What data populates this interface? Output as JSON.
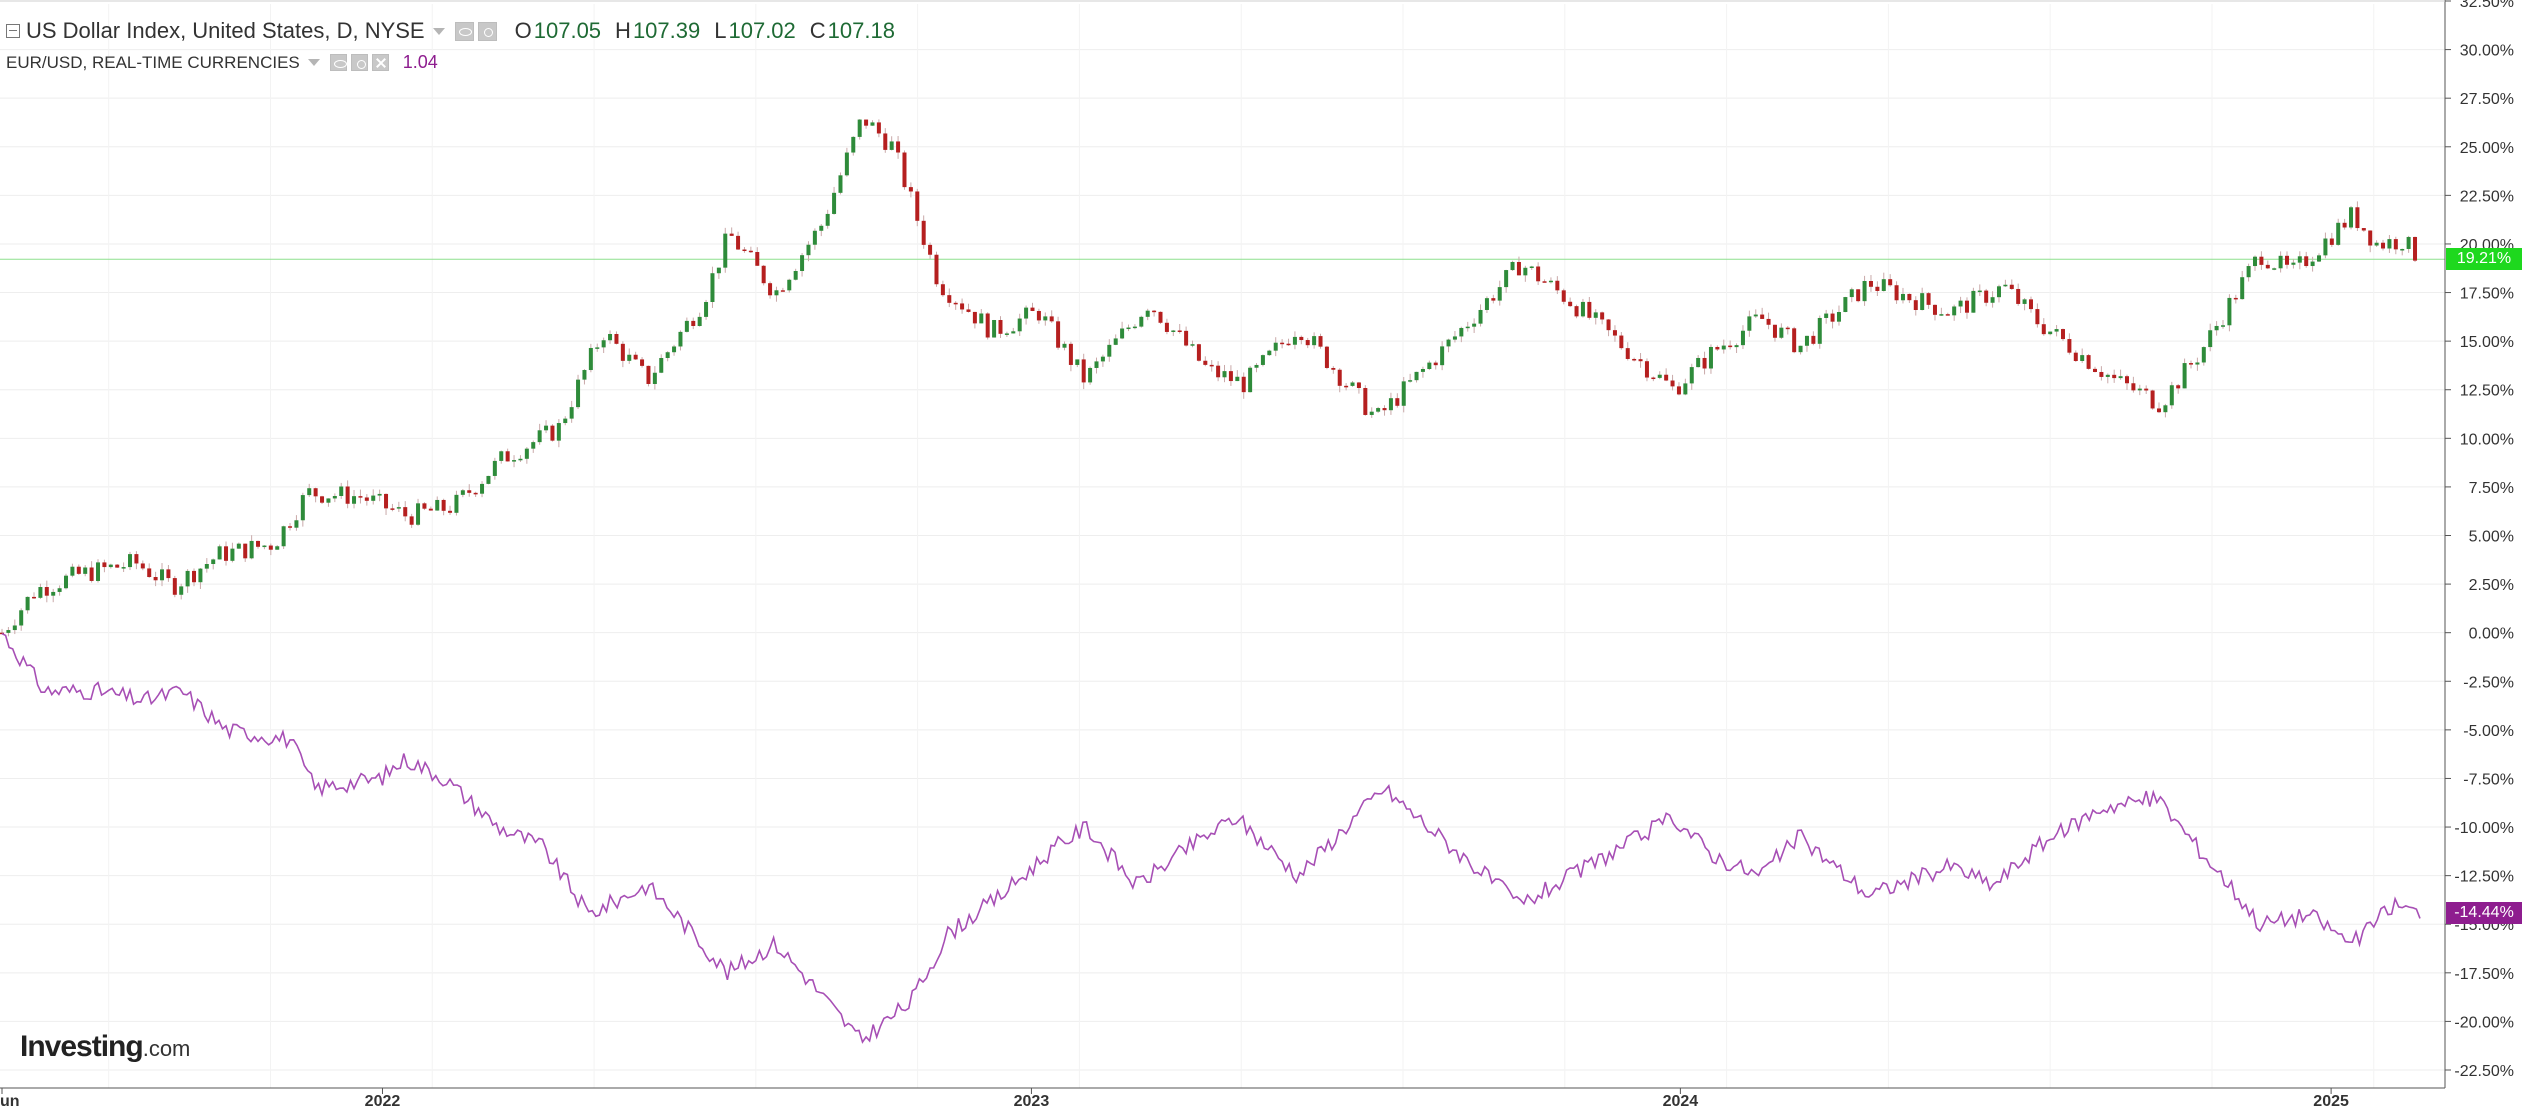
{
  "legend": {
    "main": {
      "title": "US Dollar Index, United States, D, NYSE",
      "open_label": "O",
      "open": "107.05",
      "high_label": "H",
      "high": "107.39",
      "low_label": "L",
      "low": "107.02",
      "close_label": "C",
      "close": "107.18"
    },
    "compare": {
      "title": "EUR/USD, REAL-TIME CURRENCIES",
      "value": "1.04"
    }
  },
  "logo": {
    "main": "Investing",
    "suffix": ".com"
  },
  "colors": {
    "up": "#2e8b3a",
    "down": "#b51f1f",
    "compare_line": "#a74fb5",
    "compare_tag": "#8e1d8f",
    "current_tag": "#1ed81e",
    "current_line": "#8ee08e",
    "grid": "#eeeeee",
    "axis_text": "#333333"
  },
  "chart_data": {
    "type": "line",
    "mode": "percent-change comparison",
    "y_axis_position": "right",
    "ylim": [
      -22.5,
      32.5
    ],
    "y_ticks": [
      "32.50%",
      "30.00%",
      "27.50%",
      "25.00%",
      "22.50%",
      "20.00%",
      "17.50%",
      "15.00%",
      "12.50%",
      "10.00%",
      "7.50%",
      "5.00%",
      "2.50%",
      "0.00%",
      "-2.50%",
      "-5.00%",
      "-7.50%",
      "-10.00%",
      "-12.50%",
      "-15.00%",
      "-17.50%",
      "-20.00%",
      "-22.50%"
    ],
    "x_ticks": [
      "un",
      "2022",
      "2023",
      "2024",
      "2025"
    ],
    "x_range": [
      "2021-06-01",
      "2025-02-20"
    ],
    "grid": true,
    "series": [
      {
        "name": "US Dollar Index, United States, D, NYSE",
        "style": "candlestick",
        "last_value_label": "19.21%",
        "points": [
          [
            "2021-06-01",
            0.0
          ],
          [
            "2021-06-20",
            2.2
          ],
          [
            "2021-07-15",
            3.0
          ],
          [
            "2021-08-15",
            3.6
          ],
          [
            "2021-09-05",
            2.4
          ],
          [
            "2021-10-01",
            4.0
          ],
          [
            "2021-11-01",
            4.6
          ],
          [
            "2021-11-20",
            7.2
          ],
          [
            "2021-12-20",
            7.0
          ],
          [
            "2022-01-15",
            6.0
          ],
          [
            "2022-02-10",
            6.5
          ],
          [
            "2022-03-10",
            9.0
          ],
          [
            "2022-04-10",
            10.5
          ],
          [
            "2022-05-05",
            15.5
          ],
          [
            "2022-05-30",
            13.0
          ],
          [
            "2022-06-30",
            17.0
          ],
          [
            "2022-07-15",
            20.5
          ],
          [
            "2022-08-10",
            17.5
          ],
          [
            "2022-09-05",
            21.0
          ],
          [
            "2022-09-28",
            26.5
          ],
          [
            "2022-10-15",
            25.0
          ],
          [
            "2022-11-10",
            18.0
          ],
          [
            "2022-12-10",
            15.5
          ],
          [
            "2023-01-05",
            16.5
          ],
          [
            "2023-01-31",
            13.0
          ],
          [
            "2023-03-08",
            17.0
          ],
          [
            "2023-04-10",
            13.5
          ],
          [
            "2023-05-01",
            12.8
          ],
          [
            "2023-05-31",
            15.8
          ],
          [
            "2023-07-14",
            11.0
          ],
          [
            "2023-08-20",
            14.5
          ],
          [
            "2023-10-03",
            19.0
          ],
          [
            "2023-11-01",
            17.0
          ],
          [
            "2023-12-28",
            12.5
          ],
          [
            "2024-01-20",
            14.5
          ],
          [
            "2024-02-15",
            16.2
          ],
          [
            "2024-03-08",
            14.7
          ],
          [
            "2024-04-16",
            18.0
          ],
          [
            "2024-06-01",
            16.5
          ],
          [
            "2024-07-01",
            17.8
          ],
          [
            "2024-07-20",
            16.0
          ],
          [
            "2024-09-01",
            13.0
          ],
          [
            "2024-09-27",
            11.8
          ],
          [
            "2024-10-20",
            14.5
          ],
          [
            "2024-11-22",
            19.5
          ],
          [
            "2024-12-10",
            18.5
          ],
          [
            "2025-01-13",
            21.5
          ],
          [
            "2025-01-27",
            20.0
          ],
          [
            "2025-02-10",
            20.2
          ],
          [
            "2025-02-20",
            19.21
          ]
        ]
      },
      {
        "name": "EUR/USD, REAL-TIME CURRENCIES",
        "style": "line",
        "last_value_label": "-14.44%",
        "points": [
          [
            "2021-06-01",
            0.0
          ],
          [
            "2021-06-25",
            -3.0
          ],
          [
            "2021-07-25",
            -3.0
          ],
          [
            "2021-08-20",
            -3.5
          ],
          [
            "2021-09-10",
            -3.0
          ],
          [
            "2021-10-05",
            -5.0
          ],
          [
            "2021-11-10",
            -5.5
          ],
          [
            "2021-11-24",
            -8.0
          ],
          [
            "2021-12-31",
            -7.5
          ],
          [
            "2022-01-14",
            -6.5
          ],
          [
            "2022-02-05",
            -7.5
          ],
          [
            "2022-03-07",
            -10.0
          ],
          [
            "2022-04-01",
            -11.0
          ],
          [
            "2022-04-27",
            -14.5
          ],
          [
            "2022-05-30",
            -13.0
          ],
          [
            "2022-06-15",
            -14.5
          ],
          [
            "2022-07-14",
            -17.5
          ],
          [
            "2022-08-10",
            -16.0
          ],
          [
            "2022-08-30",
            -18.0
          ],
          [
            "2022-09-27",
            -21.0
          ],
          [
            "2022-10-25",
            -19.0
          ],
          [
            "2022-11-15",
            -15.5
          ],
          [
            "2022-12-15",
            -13.5
          ],
          [
            "2023-01-15",
            -11.0
          ],
          [
            "2023-02-01",
            -10.0
          ],
          [
            "2023-03-01",
            -13.0
          ],
          [
            "2023-03-31",
            -11.0
          ],
          [
            "2023-04-26",
            -9.5
          ],
          [
            "2023-05-31",
            -12.5
          ],
          [
            "2023-07-18",
            -8.0
          ],
          [
            "2023-08-25",
            -11.0
          ],
          [
            "2023-10-03",
            -14.0
          ],
          [
            "2023-11-01",
            -12.5
          ],
          [
            "2023-12-28",
            -9.5
          ],
          [
            "2024-01-20",
            -11.5
          ],
          [
            "2024-02-14",
            -12.5
          ],
          [
            "2024-03-08",
            -10.5
          ],
          [
            "2024-04-16",
            -13.5
          ],
          [
            "2024-06-01",
            -12.0
          ],
          [
            "2024-06-25",
            -13.0
          ],
          [
            "2024-07-20",
            -11.0
          ],
          [
            "2024-08-25",
            -9.0
          ],
          [
            "2024-09-25",
            -8.5
          ],
          [
            "2024-10-22",
            -11.5
          ],
          [
            "2024-11-05",
            -13.0
          ],
          [
            "2024-11-22",
            -15.0
          ],
          [
            "2024-12-20",
            -14.5
          ],
          [
            "2025-01-13",
            -16.0
          ],
          [
            "2025-02-05",
            -14.0
          ],
          [
            "2025-02-20",
            -14.44
          ]
        ]
      }
    ]
  }
}
